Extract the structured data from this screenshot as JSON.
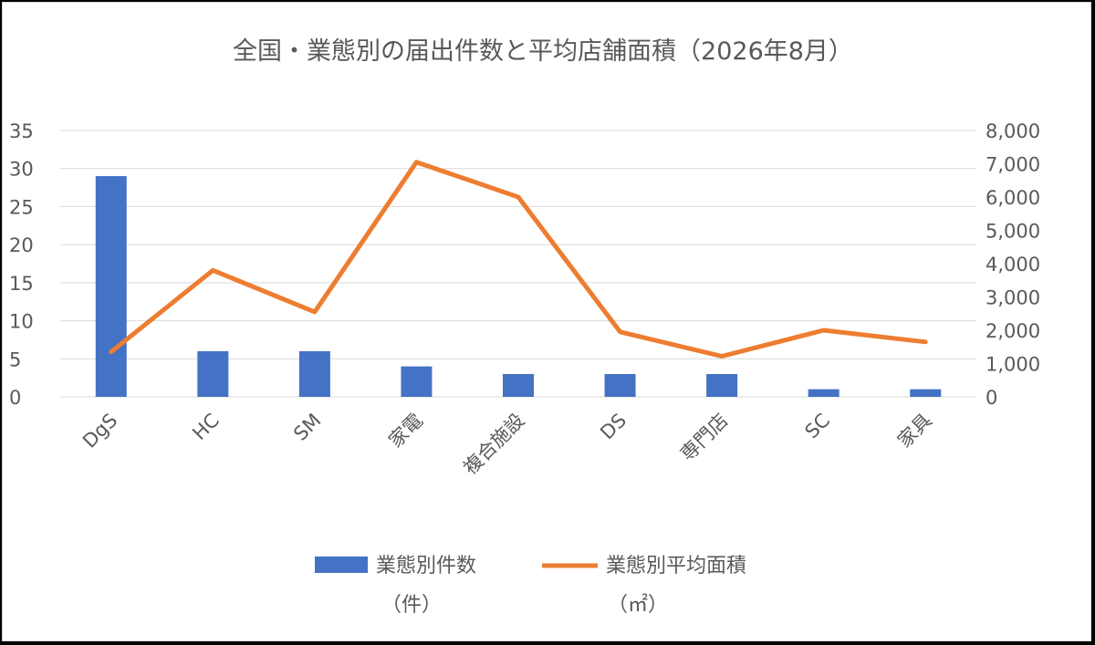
{
  "chart_data": {
    "type": "bar",
    "title": "全国・業態別の届出件数と平均店舗面積（2026年8月）",
    "categories": [
      "DgS",
      "HC",
      "SM",
      "家電",
      "複合施設",
      "DS",
      "専門店",
      "SC",
      "家具"
    ],
    "series": [
      {
        "name": "業態別件数",
        "unit": "（件）",
        "type": "bar",
        "axis": "left",
        "color": "#4472C4",
        "values": [
          29,
          6,
          6,
          4,
          3,
          3,
          3,
          1,
          1
        ]
      },
      {
        "name": "業態別平均面積",
        "unit": "（㎡）",
        "type": "line",
        "axis": "right",
        "color": "#ED7D31",
        "values": [
          1350,
          3800,
          2550,
          7050,
          6000,
          1950,
          1220,
          2000,
          1650
        ]
      }
    ],
    "y_left": {
      "min": 0,
      "max": 35,
      "ticks": [
        "0",
        "5",
        "10",
        "15",
        "20",
        "25",
        "30",
        "35"
      ]
    },
    "y_right": {
      "min": 0,
      "max": 8000,
      "ticks": [
        "0",
        "1,000",
        "2,000",
        "3,000",
        "4,000",
        "5,000",
        "6,000",
        "7,000",
        "8,000"
      ]
    },
    "grid": true,
    "legend": "bottom"
  }
}
